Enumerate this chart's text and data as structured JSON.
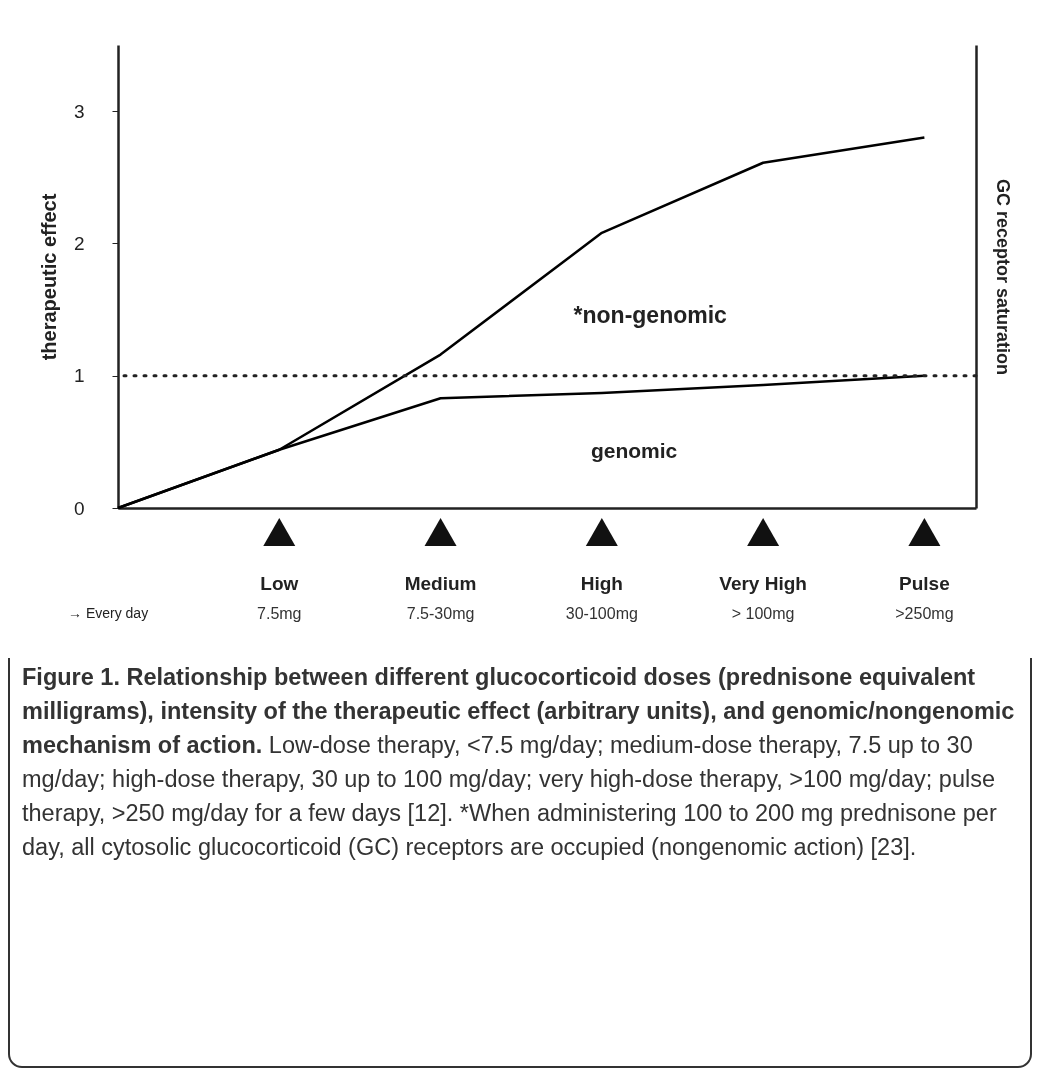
{
  "chart_data": {
    "type": "line",
    "ylabel": "therapeutic effect",
    "y2label": "GC receptor saturation",
    "categories": [
      null,
      "Low\n7.5mg",
      "Medium\n7.5-30mg",
      "High\n30-100mg",
      "Very High\n> 100mg",
      "Pulse\n>250mg"
    ],
    "series": [
      {
        "color": "#000000",
        "values": [
          0,
          0.44,
          1.16,
          2.08,
          2.61,
          2.8
        ]
      },
      {
        "color": "#000000",
        "values": [
          0,
          0.44,
          0.83,
          0.87,
          0.93,
          1.0
        ]
      }
    ],
    "ylim": [
      0,
      3.5
    ],
    "yticks": [
      0,
      1,
      2,
      3
    ],
    "ref_lines": [
      {
        "axis": "y",
        "value": 1,
        "line_style": "dotted"
      }
    ],
    "grid": false,
    "legend": false,
    "line_style": "solid",
    "annotations": [
      "*non-genomic",
      "genomic",
      "→ Every day",
      "Figure 1. Relationship between different glucocorticoid doses (prednisone equivalent milligrams), intensity of the therapeutic effect (arbitrary units), and genomic/nongenomic mechanism of action.",
      "Low-dose therapy, <7.5 mg/day; medium-dose therapy, 7.5 up to 30 mg/day; high-dose therapy, 30 up to 100 mg/day; very high-dose therapy, >100 mg/day; pulse therapy, >250 mg/day for a few days [12]. *When administering 100 to 200 mg prednisone per day, all cytosolic glucocorticoid (GC) receptors are occupied (nongenomic action) [23]."
    ]
  }
}
